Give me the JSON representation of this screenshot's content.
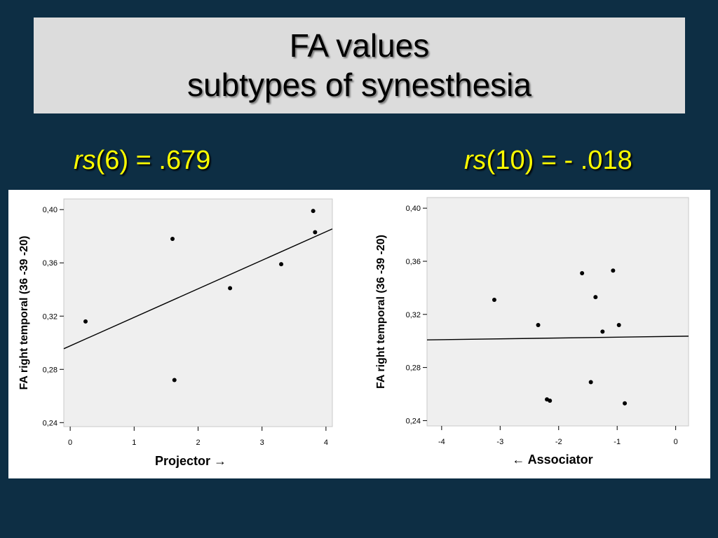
{
  "slide": {
    "title_line1": "FA values",
    "title_line2": "subtypes of synesthesia",
    "stat_left": {
      "rs": "rs",
      "rest": "(6) =  .679"
    },
    "stat_right": {
      "rs": "rs",
      "rest": "(10) = - .018"
    }
  },
  "colors": {
    "background": "#0d2e44",
    "title_box": "#dcdcdc",
    "stat_text": "#ffff00",
    "plot_bg": "#efefef"
  },
  "chart_data": [
    {
      "type": "scatter",
      "xlabel": "Projector  →",
      "ylabel": "FA right temporal (36 -39 -20)",
      "xlim": [
        -0.1,
        4.1
      ],
      "ylim": [
        0.237,
        0.408
      ],
      "xticks": [
        "0",
        "1",
        "2",
        "3",
        "4"
      ],
      "yticks": [
        "0,24",
        "0,28",
        "0,32",
        "0,36",
        "0,40"
      ],
      "points": [
        {
          "x": 0.24,
          "y": 0.316
        },
        {
          "x": 1.6,
          "y": 0.378
        },
        {
          "x": 1.63,
          "y": 0.272
        },
        {
          "x": 2.5,
          "y": 0.341
        },
        {
          "x": 3.3,
          "y": 0.359
        },
        {
          "x": 3.8,
          "y": 0.399
        },
        {
          "x": 3.83,
          "y": 0.383
        }
      ],
      "fit_line": {
        "x": [
          -0.1,
          4.1
        ],
        "y": [
          0.2955,
          0.3855
        ]
      },
      "grid": false
    },
    {
      "type": "scatter",
      "xlabel": "←  Associator",
      "ylabel": "FA right temporal (36 -39 -20)",
      "xlim": [
        -4.25,
        0.22
      ],
      "ylim": [
        0.236,
        0.408
      ],
      "xticks": [
        "-4",
        "-3",
        "-2",
        "-1",
        "0"
      ],
      "yticks": [
        "0,24",
        "0,28",
        "0,32",
        "0,36",
        "0,40"
      ],
      "points": [
        {
          "x": -3.1,
          "y": 0.331
        },
        {
          "x": -2.35,
          "y": 0.312
        },
        {
          "x": -2.2,
          "y": 0.256
        },
        {
          "x": -2.15,
          "y": 0.255
        },
        {
          "x": -1.6,
          "y": 0.351
        },
        {
          "x": -1.45,
          "y": 0.269
        },
        {
          "x": -1.37,
          "y": 0.333
        },
        {
          "x": -1.25,
          "y": 0.307
        },
        {
          "x": -1.07,
          "y": 0.353
        },
        {
          "x": -0.97,
          "y": 0.312
        },
        {
          "x": -0.87,
          "y": 0.253
        }
      ],
      "fit_line": {
        "x": [
          -4.25,
          0.22
        ],
        "y": [
          0.3008,
          0.3036
        ]
      },
      "grid": false
    }
  ]
}
